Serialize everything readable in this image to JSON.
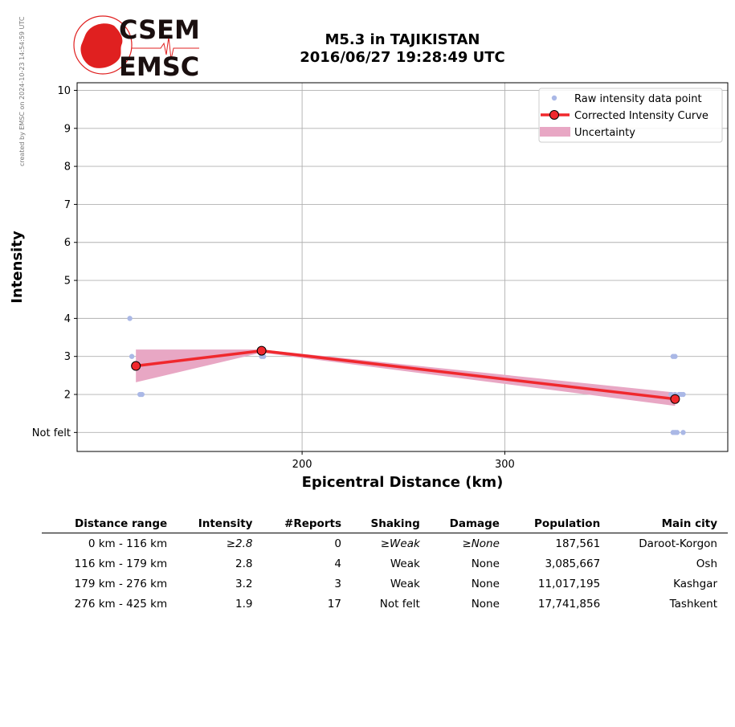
{
  "side_note": "created by EMSC on 2024-10-23 14:54:59 UTC",
  "logo": {
    "line1": "CSEM",
    "line2": "EMSC",
    "colors": {
      "red": "#e02020",
      "dark": "#1a0f0f"
    }
  },
  "title": {
    "line1": "M5.3 in TAJIKISTAN",
    "line2": "2016/06/27 19:28:49 UTC"
  },
  "chart_data": {
    "type": "line",
    "xlabel": "Epicentral Distance (km)",
    "ylabel": "Intensity",
    "xlim": [
      89,
      410
    ],
    "ylim": [
      0.5,
      10.2
    ],
    "x_ticks": [
      200,
      300
    ],
    "y_ticks": [
      1,
      2,
      3,
      4,
      5,
      6,
      7,
      8,
      9,
      10
    ],
    "y_tick_labels": [
      "Not felt",
      "2",
      "3",
      "4",
      "5",
      "6",
      "7",
      "8",
      "9",
      "10"
    ],
    "grid": true,
    "legend_position": "top-right",
    "colors": {
      "raw": "#aab8e6",
      "curve": "#f0282d",
      "uncertainty": "#e8a7c4",
      "grid": "#b0b0b0"
    },
    "legend": [
      "Raw intensity data point",
      "Corrected Intensity Curve",
      "Uncertainty"
    ],
    "raw_points": [
      {
        "x": 115,
        "y": 4
      },
      {
        "x": 116,
        "y": 3
      },
      {
        "x": 120,
        "y": 2
      },
      {
        "x": 121,
        "y": 2
      },
      {
        "x": 180,
        "y": 3
      },
      {
        "x": 181,
        "y": 3
      },
      {
        "x": 383,
        "y": 3
      },
      {
        "x": 384,
        "y": 3
      },
      {
        "x": 382,
        "y": 2
      },
      {
        "x": 384,
        "y": 2
      },
      {
        "x": 386,
        "y": 2
      },
      {
        "x": 387,
        "y": 2
      },
      {
        "x": 388,
        "y": 2
      },
      {
        "x": 383,
        "y": 1
      },
      {
        "x": 384,
        "y": 1
      },
      {
        "x": 385,
        "y": 1
      },
      {
        "x": 388,
        "y": 1
      }
    ],
    "curve": [
      {
        "x": 118,
        "y": 2.75
      },
      {
        "x": 180,
        "y": 3.15
      },
      {
        "x": 384,
        "y": 1.88
      }
    ],
    "uncertainty": [
      {
        "x": 118,
        "lo": 2.32,
        "hi": 3.18
      },
      {
        "x": 180,
        "lo": 3.1,
        "hi": 3.18
      },
      {
        "x": 384,
        "lo": 1.7,
        "hi": 2.05
      }
    ]
  },
  "table": {
    "headers": [
      "Distance range",
      "Intensity",
      "#Reports",
      "Shaking",
      "Damage",
      "Population",
      "Main city"
    ],
    "rows": [
      [
        "0 km -  116 km",
        "≥2.8",
        "0",
        "≥Weak",
        "≥None",
        "187,561",
        "Daroot-Korgon"
      ],
      [
        "116 km -  179 km",
        "2.8",
        "4",
        "Weak",
        "None",
        "3,085,667",
        "Osh"
      ],
      [
        "179 km -  276 km",
        "3.2",
        "3",
        "Weak",
        "None",
        "11,017,195",
        "Kashgar"
      ],
      [
        "276 km -  425 km",
        "1.9",
        "17",
        "Not felt",
        "None",
        "17,741,856",
        "Tashkent"
      ]
    ]
  }
}
